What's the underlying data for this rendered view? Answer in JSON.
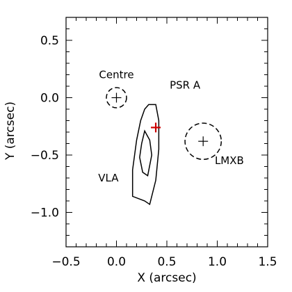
{
  "chart_data": {
    "type": "scatter",
    "xlabel": "X (arcsec)",
    "ylabel": "Y (arcsec)",
    "xlim": [
      -0.5,
      1.5
    ],
    "ylim": [
      -1.3,
      0.7
    ],
    "xticks": [
      -0.5,
      0.0,
      0.5,
      1.0,
      1.5
    ],
    "xtick_labels": [
      "−0.5",
      "0.0",
      "0.5",
      "1.0",
      "1.5"
    ],
    "yticks": [
      0.5,
      0.0,
      -0.5,
      -1.0
    ],
    "ytick_labels": [
      "0.5",
      "0.0",
      "−0.5",
      "−1.0"
    ],
    "grid": false,
    "legend": "none",
    "markers": [
      {
        "label": "Centre",
        "x": 0.0,
        "y": 0.0,
        "error_radius": 0.1,
        "label_x": 0.0,
        "label_y": 0.17,
        "color": "#000000"
      },
      {
        "label": "LMXB",
        "x": 0.86,
        "y": -0.38,
        "error_radius": 0.18,
        "label_x": 1.12,
        "label_y": -0.58,
        "color": "#000000"
      },
      {
        "label": "PSR A",
        "x": 0.39,
        "y": -0.26,
        "error_radius": null,
        "label_x": 0.68,
        "label_y": 0.08,
        "color": "#cc0000"
      }
    ],
    "contours": {
      "label": "VLA",
      "label_x": -0.08,
      "label_y": -0.73,
      "outer": [
        [
          0.32,
          -0.06
        ],
        [
          0.39,
          -0.06
        ],
        [
          0.42,
          -0.2
        ],
        [
          0.42,
          -0.45
        ],
        [
          0.39,
          -0.72
        ],
        [
          0.33,
          -0.93
        ],
        [
          0.28,
          -0.9
        ],
        [
          0.16,
          -0.86
        ],
        [
          0.16,
          -0.63
        ],
        [
          0.2,
          -0.37
        ],
        [
          0.24,
          -0.2
        ],
        [
          0.28,
          -0.1
        ]
      ],
      "inner": [
        [
          0.28,
          -0.29
        ],
        [
          0.33,
          -0.37
        ],
        [
          0.35,
          -0.5
        ],
        [
          0.31,
          -0.68
        ],
        [
          0.26,
          -0.65
        ],
        [
          0.23,
          -0.52
        ],
        [
          0.25,
          -0.4
        ]
      ]
    }
  }
}
